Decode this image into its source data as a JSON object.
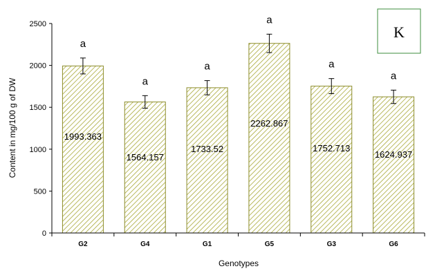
{
  "chart_data": {
    "type": "bar",
    "categories": [
      "G2",
      "G4",
      "G1",
      "G5",
      "G3",
      "G6"
    ],
    "values": [
      1993.363,
      1564.157,
      1733.52,
      2262.867,
      1752.713,
      1624.937
    ],
    "value_labels": [
      "1993.363",
      "1564.157",
      "1733.52",
      "2262.867",
      "1752.713",
      "1624.937"
    ],
    "error": [
      95,
      75,
      85,
      110,
      90,
      80
    ],
    "significance": [
      "a",
      "a",
      "a",
      "a",
      "a",
      "a"
    ],
    "xlabel": "Genotypes",
    "ylabel": "Content in mg/100 g of DW",
    "ylim": [
      0,
      2500
    ],
    "yticks": [
      0,
      500,
      1000,
      1500,
      2000,
      2500
    ],
    "ytick_labels": [
      "0",
      "500",
      "1000",
      "1500",
      "2000",
      "2500"
    ],
    "panel_label": "K",
    "grid": false,
    "bar_fill": "#ffffff",
    "bar_hatch_color": "#a8a837",
    "bar_edge_color": "#8c8c2a",
    "axis_color": "#000000"
  }
}
